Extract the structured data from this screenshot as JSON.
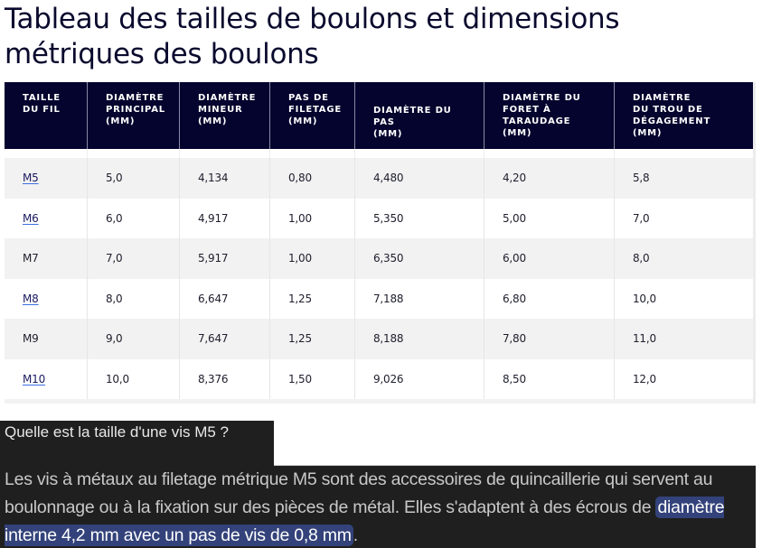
{
  "page": {
    "title": "Tableau des tailles de boulons et dimensions métriques des boulons"
  },
  "table": {
    "headers": [
      {
        "lines": [
          "TAILLE",
          "DU FIL"
        ],
        "align": "top"
      },
      {
        "lines": [
          "DIAMÈTRE",
          "PRINCIPAL",
          "(MM)"
        ],
        "align": "top"
      },
      {
        "lines": [
          "DIAMÈTRE",
          "MINEUR",
          "(MM)"
        ],
        "align": "top"
      },
      {
        "lines": [
          "PAS DE",
          "FILETAGE",
          "(MM)"
        ],
        "align": "top"
      },
      {
        "lines": [
          "DIAMÈTRE DU",
          "PAS",
          "(MM)"
        ],
        "align": "bottom"
      },
      {
        "lines": [
          "DIAMÈTRE DU",
          "FORET À",
          "TARAUDAGE",
          "(MM)"
        ],
        "align": "top"
      },
      {
        "lines": [
          "DIAMÈTRE",
          "DU TROU DE",
          "DÉGAGEMENT",
          "(MM)"
        ],
        "align": "top"
      }
    ],
    "rows": [
      {
        "size": "M5",
        "link": true,
        "major": "5,0",
        "minor": "4,134",
        "pitch": "0,80",
        "pitch_dia": "4,480",
        "tap_drill": "4,20",
        "clearance": "5,8"
      },
      {
        "size": "M6",
        "link": true,
        "major": "6,0",
        "minor": "4,917",
        "pitch": "1,00",
        "pitch_dia": "5,350",
        "tap_drill": "5,00",
        "clearance": "7,0"
      },
      {
        "size": "M7",
        "link": false,
        "major": "7,0",
        "minor": "5,917",
        "pitch": "1,00",
        "pitch_dia": "6,350",
        "tap_drill": "6,00",
        "clearance": "8,0"
      },
      {
        "size": "M8",
        "link": true,
        "major": "8,0",
        "minor": "6,647",
        "pitch": "1,25",
        "pitch_dia": "7,188",
        "tap_drill": "6,80",
        "clearance": "10,0"
      },
      {
        "size": "M9",
        "link": false,
        "major": "9,0",
        "minor": "7,647",
        "pitch": "1,25",
        "pitch_dia": "8,188",
        "tap_drill": "7,80",
        "clearance": "11,0"
      },
      {
        "size": "M10",
        "link": true,
        "major": "10,0",
        "minor": "8,376",
        "pitch": "1,50",
        "pitch_dia": "9,026",
        "tap_drill": "8,50",
        "clearance": "12,0"
      }
    ]
  },
  "snippet": {
    "question": "Quelle est la taille d'une vis M5 ?",
    "answer_plain": "Les vis à métaux au filetage métrique M5 sont des accessoires de quincaillerie qui servent au boulonnage ou à la fixation sur des pièces de métal. Elles s'adaptent à des écrous de ",
    "answer_highlight": "diamètre interne 4,2 mm avec un pas de vis de 0,8 mm",
    "answer_end": ".",
    "highlight_color": "#33427a",
    "background_color": "#1f1f1f"
  },
  "colors": {
    "header_bg": "#04042e",
    "title_color": "#0a0a2e",
    "row_alt": "#f2f2f2",
    "link_underline": "#3b6fe0"
  }
}
